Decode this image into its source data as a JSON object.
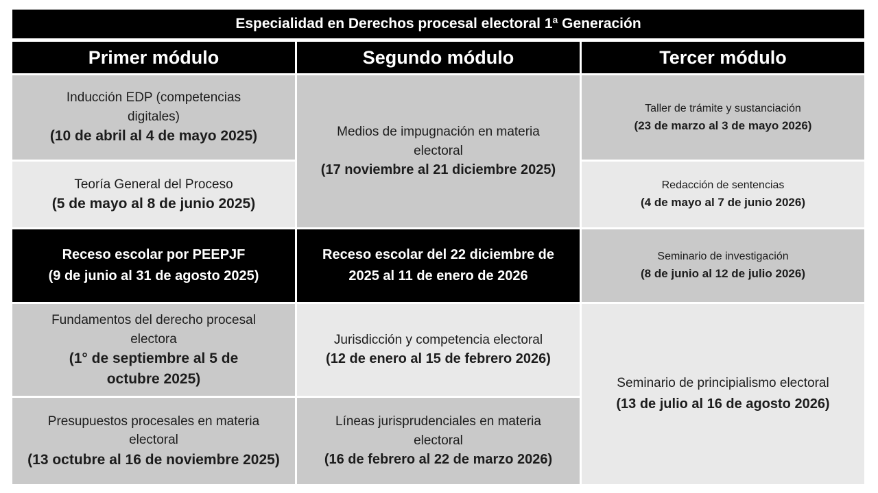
{
  "title": "Especialidad en Derechos procesal electoral 1ª Generación",
  "colors": {
    "header_bg": "#000000",
    "header_text": "#ffffff",
    "cell_gray_medium": "#c9c9c9",
    "cell_gray_light": "#e9e9e9",
    "recess_bg": "#000000",
    "recess_text": "#ffffff",
    "body_text": "#1c1c1c",
    "background": "#ffffff"
  },
  "modules": [
    {
      "header": "Primer módulo",
      "cells": [
        {
          "title": "Inducción EDP (competencias\ndigitales)",
          "date": "(10 de abril al 4 de mayo 2025)"
        },
        {
          "title": "Teoría General del Proceso",
          "date": "(5 de mayo al 8 de junio 2025)"
        },
        {
          "recess": "Receso escolar por PEEPJF\n(9 de junio al 31 de agosto 2025)"
        },
        {
          "title": "Fundamentos del derecho procesal\nelectora",
          "date": "(1° de septiembre al 5 de\noctubre 2025)"
        },
        {
          "title": "Presupuestos procesales en materia\nelectoral",
          "date": "(13 octubre al 16 de noviembre 2025)"
        }
      ]
    },
    {
      "header": "Segundo módulo",
      "cells": [
        {
          "title": "Medios de impugnación en materia\nelectoral",
          "date": "(17 noviembre al 21 diciembre 2025)"
        },
        {
          "recess": "Receso escolar del 22 diciembre de\n2025 al 11 de enero de 2026"
        },
        {
          "title": "Jurisdicción y competencia electoral",
          "date": "(12 de enero al 15 de febrero 2026)"
        },
        {
          "title": "Líneas jurisprudenciales en materia\nelectoral",
          "date": "(16 de febrero al 22 de marzo 2026)"
        }
      ]
    },
    {
      "header": "Tercer módulo",
      "cells": [
        {
          "title": "Taller de trámite y sustanciación",
          "date": "(23 de marzo al 3 de mayo 2026)"
        },
        {
          "title": "Redacción de sentencias",
          "date": "(4 de mayo al 7 de junio 2026)"
        },
        {
          "title": "Seminario de investigación",
          "date": "(8 de junio al 12 de julio 2026)"
        },
        {
          "title": "Seminario de principialismo electoral",
          "date": "(13 de julio al 16 de agosto 2026)"
        }
      ]
    }
  ]
}
